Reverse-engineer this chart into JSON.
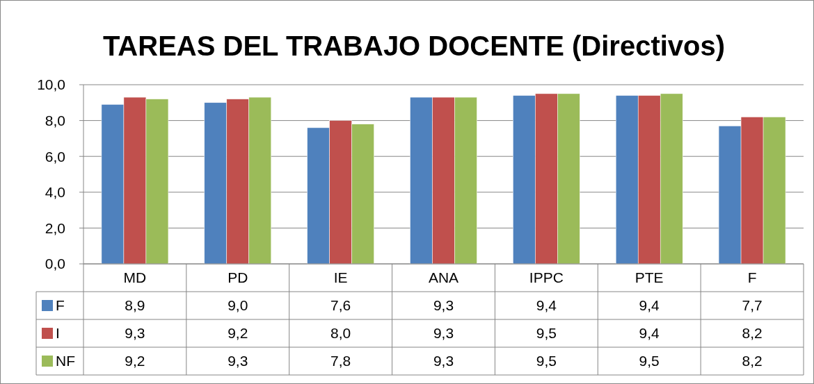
{
  "chart_data": {
    "type": "bar",
    "title": "TAREAS DEL TRABAJO DOCENTE (Directivos)",
    "categories": [
      "MD",
      "PD",
      "IE",
      "ANA",
      "IPPC",
      "PTE",
      "F"
    ],
    "series": [
      {
        "name": "F",
        "color": "#4f81bd",
        "values": [
          8.9,
          9.0,
          7.6,
          9.3,
          9.4,
          9.4,
          7.7
        ],
        "value_labels": [
          "8,9",
          "9,0",
          "7,6",
          "9,3",
          "9,4",
          "9,4",
          "7,7"
        ]
      },
      {
        "name": "I",
        "color": "#c0504d",
        "values": [
          9.3,
          9.2,
          8.0,
          9.3,
          9.5,
          9.4,
          8.2
        ],
        "value_labels": [
          "9,3",
          "9,2",
          "8,0",
          "9,3",
          "9,5",
          "9,4",
          "8,2"
        ]
      },
      {
        "name": "NF",
        "color": "#9bbb59",
        "values": [
          9.2,
          9.3,
          7.8,
          9.3,
          9.5,
          9.5,
          8.2
        ],
        "value_labels": [
          "9,2",
          "9,3",
          "7,8",
          "9,3",
          "9,5",
          "9,5",
          "8,2"
        ]
      }
    ],
    "ylim": [
      0,
      10
    ],
    "yticks": [
      {
        "value": 0,
        "label": "0,0"
      },
      {
        "value": 2,
        "label": "2,0"
      },
      {
        "value": 4,
        "label": "4,0"
      },
      {
        "value": 6,
        "label": "6,0"
      },
      {
        "value": 8,
        "label": "8,0"
      },
      {
        "value": 10,
        "label": "10,0"
      }
    ],
    "grid": "y",
    "legend": "bottom"
  }
}
